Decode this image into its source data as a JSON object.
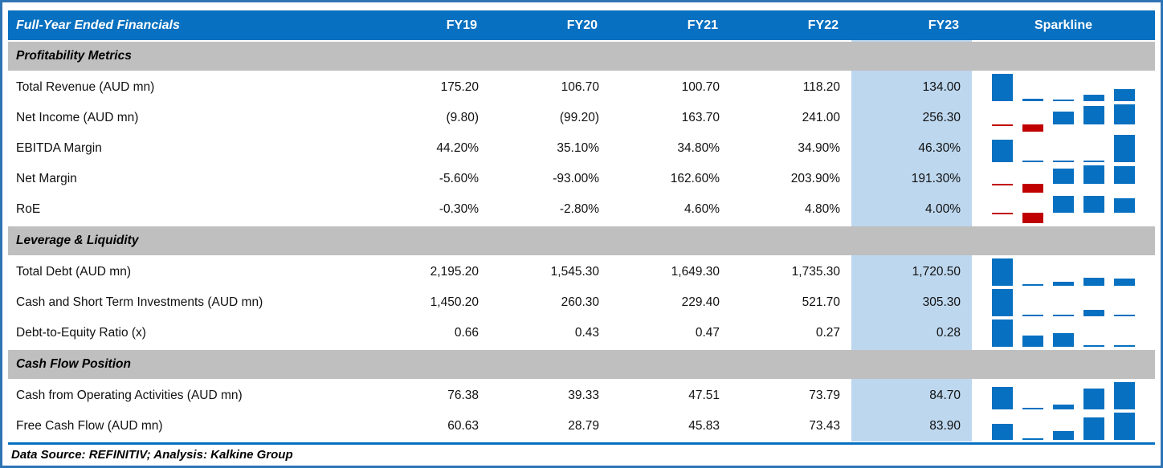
{
  "title": "Full-Year Ended Financials",
  "columns": [
    "FY19",
    "FY20",
    "FY21",
    "FY22",
    "FY23"
  ],
  "sparkline_header": "Sparkline",
  "highlight_column": "FY23",
  "sections": [
    {
      "label": "Profitability Metrics",
      "rows": [
        {
          "label": "Total Revenue (AUD mn)",
          "values": [
            "175.20",
            "106.70",
            "100.70",
            "118.20",
            "134.00"
          ],
          "spark": [
            175.2,
            106.7,
            100.7,
            118.2,
            134.0
          ]
        },
        {
          "label": "Net Income (AUD mn)",
          "values": [
            "(9.80)",
            "(99.20)",
            "163.70",
            "241.00",
            "256.30"
          ],
          "spark": [
            -9.8,
            -99.2,
            163.7,
            241.0,
            256.3
          ]
        },
        {
          "label": "EBITDA Margin",
          "values": [
            "44.20%",
            "35.10%",
            "34.80%",
            "34.90%",
            "46.30%"
          ],
          "spark": [
            44.2,
            35.1,
            34.8,
            34.9,
            46.3
          ]
        },
        {
          "label": "Net Margin",
          "values": [
            "-5.60%",
            "-93.00%",
            "162.60%",
            "203.90%",
            "191.30%"
          ],
          "spark": [
            -5.6,
            -93.0,
            162.6,
            203.9,
            191.3
          ]
        },
        {
          "label": "RoE",
          "values": [
            "-0.30%",
            "-2.80%",
            "4.60%",
            "4.80%",
            "4.00%"
          ],
          "spark": [
            -0.3,
            -2.8,
            4.6,
            4.8,
            4.0
          ]
        }
      ]
    },
    {
      "label": "Leverage & Liquidity",
      "rows": [
        {
          "label": "Total Debt (AUD mn)",
          "values": [
            "2,195.20",
            "1,545.30",
            "1,649.30",
            "1,735.30",
            "1,720.50"
          ],
          "spark": [
            2195.2,
            1545.3,
            1649.3,
            1735.3,
            1720.5
          ]
        },
        {
          "label": "Cash and Short Term Investments (AUD mn)",
          "values": [
            "1,450.20",
            "260.30",
            "229.40",
            "521.70",
            "305.30"
          ],
          "spark": [
            1450.2,
            260.3,
            229.4,
            521.7,
            305.3
          ]
        },
        {
          "label": "Debt-to-Equity Ratio (x)",
          "values": [
            "0.66",
            "0.43",
            "0.47",
            "0.27",
            "0.28"
          ],
          "spark": [
            0.66,
            0.43,
            0.47,
            0.27,
            0.28
          ]
        }
      ]
    },
    {
      "label": "Cash Flow Position",
      "rows": [
        {
          "label": "Cash from Operating Activities (AUD mn)",
          "values": [
            "76.38",
            "39.33",
            "47.51",
            "73.79",
            "84.70"
          ],
          "spark": [
            76.38,
            39.33,
            47.51,
            73.79,
            84.7
          ]
        },
        {
          "label": "Free Cash Flow (AUD mn)",
          "values": [
            "60.63",
            "28.79",
            "45.83",
            "73.43",
            "83.90"
          ],
          "spark": [
            60.63,
            28.79,
            45.83,
            73.43,
            83.9
          ]
        }
      ]
    }
  ],
  "footer": "Data Source: REFINITIV; Analysis: Kalkine Group",
  "colors": {
    "header_bg": "#0770c0",
    "band_bg": "#bfbfbf",
    "highlight_bg": "#bdd7ee",
    "bar_positive": "#0770c0",
    "bar_negative": "#c00000",
    "outer_border": "#2e74b5"
  }
}
